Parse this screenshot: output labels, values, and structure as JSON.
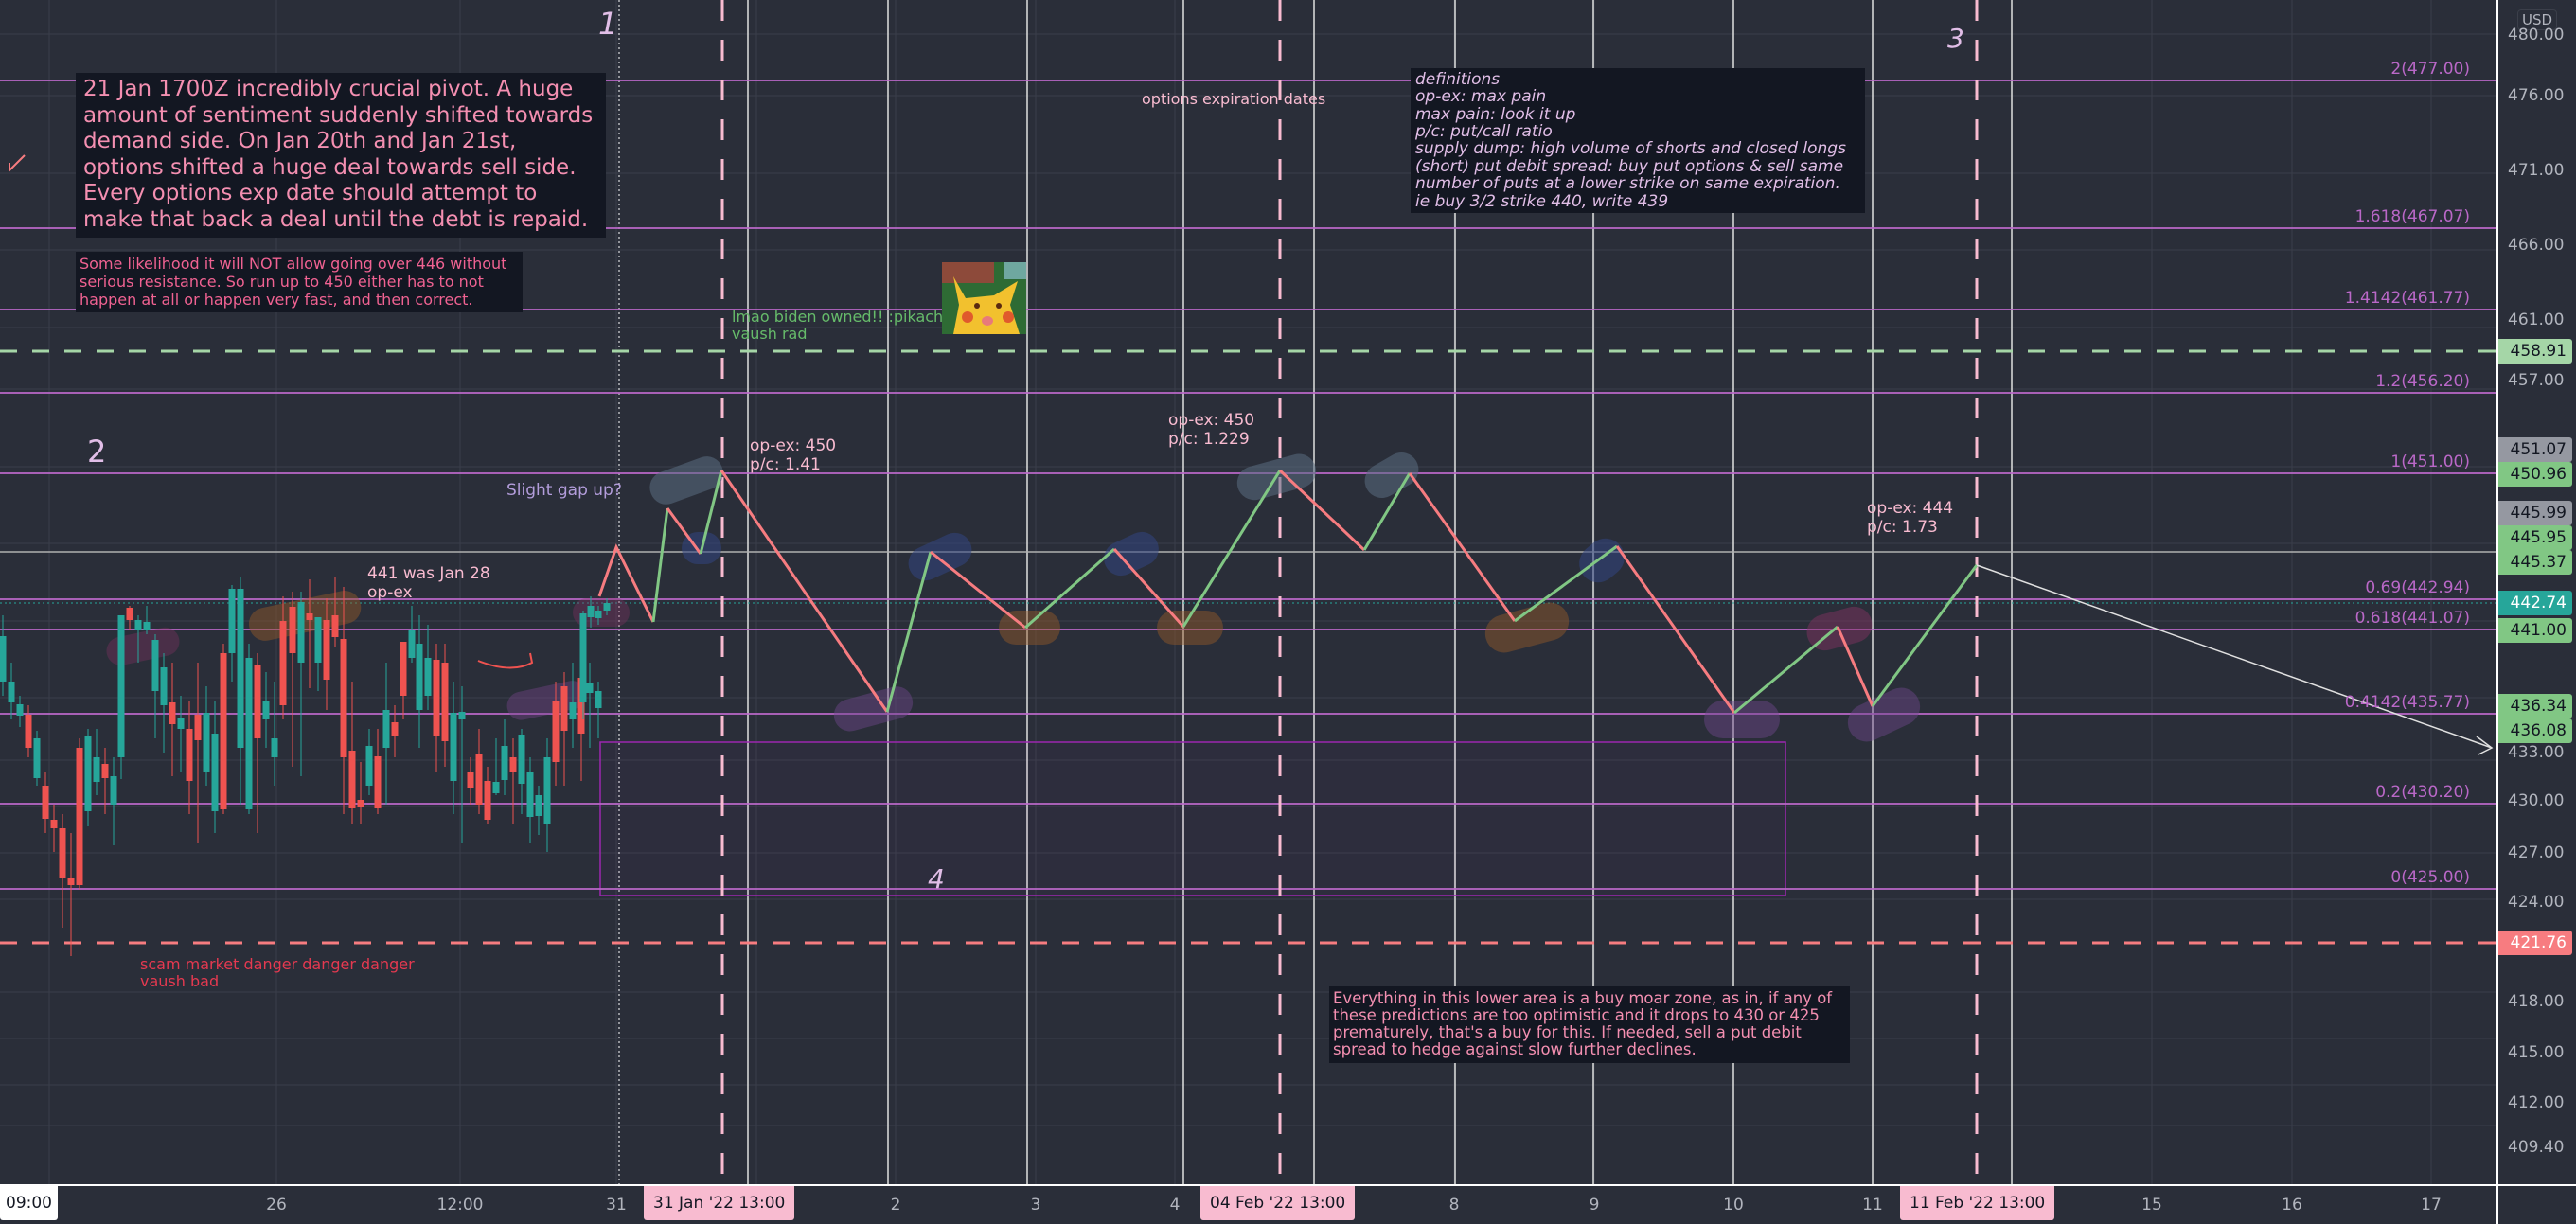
{
  "price_axis": {
    "currency": "USD",
    "ticks": [
      "480.00",
      "476.00",
      "471.00",
      "466.00",
      "461.00",
      "457.00",
      "437.00",
      "433.00",
      "430.00",
      "427.00",
      "424.00",
      "418.00",
      "415.00",
      "412.00",
      "409.40"
    ],
    "tags": [
      {
        "value": "458.91",
        "color": "#a5d6a7"
      },
      {
        "value": "451.07",
        "color": "#9598a1"
      },
      {
        "value": "450.96",
        "color": "#81c784"
      },
      {
        "value": "445.99",
        "color": "#9598a1"
      },
      {
        "value": "445.95",
        "color": "#81c784"
      },
      {
        "value": "445.37",
        "color": "#81c784"
      },
      {
        "value": "442.74",
        "color": "#26a69a"
      },
      {
        "value": "441.00",
        "color": "#81c784"
      },
      {
        "value": "436.34",
        "color": "#81c784"
      },
      {
        "value": "436.08",
        "color": "#81c784"
      },
      {
        "value": "421.76",
        "color": "#f77c80"
      }
    ]
  },
  "time_axis": {
    "labels": [
      "09:00",
      "26",
      "12:00",
      "31",
      "2",
      "3",
      "4",
      "8",
      "9",
      "10",
      "11",
      "15",
      "16",
      "17"
    ],
    "highlights": [
      "31 Jan '22   13:00",
      "04 Feb '22   13:00",
      "11 Feb '22   13:00"
    ]
  },
  "fib_levels": [
    {
      "label": "2(477.00)",
      "price": 477.0
    },
    {
      "label": "1.618(467.07)",
      "price": 467.07
    },
    {
      "label": "1.4142(461.77)",
      "price": 461.77
    },
    {
      "label": "1.2(456.20)",
      "price": 456.2
    },
    {
      "label": "1(451.00)",
      "price": 451.0
    },
    {
      "label": "0.69(442.94)",
      "price": 442.94
    },
    {
      "label": "0.618(441.07)",
      "price": 441.07
    },
    {
      "label": "0.4142(435.77)",
      "price": 435.77
    },
    {
      "label": "0.2(430.20)",
      "price": 430.2
    },
    {
      "label": "0(425.00)",
      "price": 425.0
    }
  ],
  "horizontal_lines": {
    "green_dashed": "458.91",
    "red_dashed": "421.76",
    "last_price": "442.74"
  },
  "annotations": {
    "pivot_note": "21 Jan 1700Z incredibly crucial pivot. A huge amount of sentiment suddenly shifted towards demand side.  On Jan 20th and Jan 21st, options shifted a huge deal towards sell side. Every options exp date should attempt to make that back a deal until the debt is repaid.",
    "resistance_note": "Some likelihood it will NOT allow going over 446 without serious resistance. So run up to 450 either has to not happen at all or happen very fast, and then correct.",
    "definitions": [
      "definitions",
      "op-ex: max pain",
      "max pain: look it up",
      "p/c: put/call ratio",
      "supply dump: high volume of shorts and closed longs",
      "(short) put debit spread: buy put options & sell same",
      "number of puts at a lower strike on same expiration.",
      "ie buy 3/2 strike 440, write 439"
    ],
    "lower_area_note": "Everything in this lower area is a buy moar zone, as in, if any of these predictions are too optimistic and it drops to 430 or 425 prematurely, that's a buy for this. If needed, sell a put debit spread to hedge against slow further declines.",
    "options_expiration": "options expiration dates",
    "biden_line1": "lmao biden owned!! :pikach",
    "biden_line2": "vaush rad",
    "gap_up": "Slight gap up?",
    "jan28_line1": "441 was Jan 28",
    "jan28_line2": "op-ex",
    "scam_line1": "scam market danger danger danger",
    "scam_line2": "vaush bad",
    "opex1_line1": "op-ex: 450",
    "opex1_line2": "p/c: 1.41",
    "opex2_line1": "op-ex: 450",
    "opex2_line2": "p/c: 1.229",
    "opex3_line1": "op-ex: 444",
    "opex3_line2": "p/c: 1.73",
    "marker_1": "1",
    "marker_2": "2",
    "marker_3": "3",
    "marker_4": "4"
  },
  "colors": {
    "background": "#2a2e39",
    "fib": "#ba68c8",
    "up_candle": "#26a69a",
    "down_candle": "#ef5350",
    "opex_dash": "#f8bbd0",
    "green_arrow": "#81c784",
    "red_arrow": "#f77c80"
  }
}
